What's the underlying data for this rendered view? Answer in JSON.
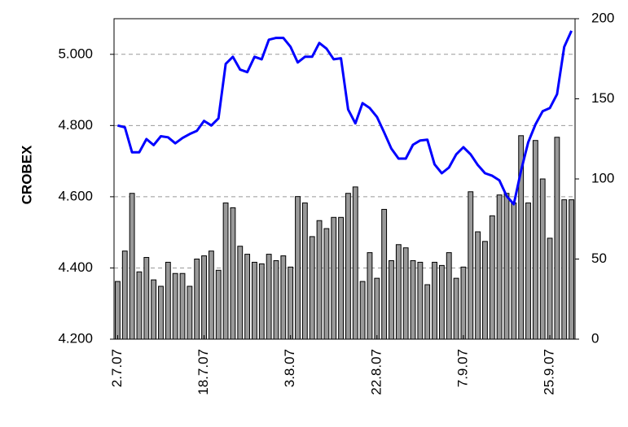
{
  "chart_data": {
    "type": "bar-line",
    "y_label": "CROBEX",
    "categories": [
      "2.7.07",
      null,
      null,
      null,
      null,
      null,
      null,
      null,
      null,
      null,
      null,
      null,
      "18.7.07",
      null,
      null,
      null,
      null,
      null,
      null,
      null,
      null,
      null,
      null,
      null,
      "3.8.07",
      null,
      null,
      null,
      null,
      null,
      null,
      null,
      null,
      null,
      null,
      null,
      "22.8.07",
      null,
      null,
      null,
      null,
      null,
      null,
      null,
      null,
      null,
      null,
      null,
      "7.9.07",
      null,
      null,
      null,
      null,
      null,
      null,
      null,
      null,
      null,
      null,
      null,
      "25.9.07",
      null,
      null,
      null
    ],
    "series": [
      {
        "type": "bar",
        "axis": "y2",
        "color": "#999999",
        "values": [
          36,
          55,
          91,
          42,
          51,
          37,
          33,
          48,
          41,
          41,
          33,
          50,
          52,
          55,
          43,
          85,
          82,
          58,
          53,
          48,
          47,
          53,
          49,
          52,
          45,
          89,
          85,
          64,
          74,
          69,
          76,
          76,
          91,
          95,
          36,
          54,
          38,
          81,
          49,
          59,
          57,
          49,
          48,
          34,
          48,
          46,
          54,
          38,
          45,
          92,
          67,
          61,
          77,
          90,
          91,
          85,
          127,
          85,
          124,
          100,
          63,
          126,
          87,
          87
        ]
      },
      {
        "type": "line",
        "axis": "y",
        "color": "#0000ff",
        "values": [
          4800,
          4795,
          4725,
          4725,
          4762,
          4745,
          4770,
          4767,
          4750,
          4765,
          4776,
          4785,
          4813,
          4800,
          4820,
          4973,
          4993,
          4957,
          4950,
          4993,
          4986,
          5041,
          5046,
          5046,
          5021,
          4977,
          4993,
          4993,
          5032,
          5016,
          4986,
          4989,
          4845,
          4806,
          4863,
          4849,
          4824,
          4781,
          4735,
          4707,
          4707,
          4746,
          4758,
          4760,
          4691,
          4666,
          4682,
          4719,
          4739,
          4719,
          4689,
          4666,
          4659,
          4646,
          4602,
          4579,
          4673,
          4753,
          4803,
          4840,
          4849,
          4888,
          5021,
          5066
        ]
      }
    ],
    "ylim": [
      4200,
      5100
    ],
    "yticks": [
      {
        "value": 4200,
        "label": "4.200"
      },
      {
        "value": 4400,
        "label": "4.400"
      },
      {
        "value": 4600,
        "label": "4.600"
      },
      {
        "value": 4800,
        "label": "4.800"
      },
      {
        "value": 5000,
        "label": "5.000"
      }
    ],
    "y2lim": [
      0,
      200
    ],
    "y2ticks": [
      0,
      50,
      100,
      150,
      200
    ],
    "grid": true
  }
}
